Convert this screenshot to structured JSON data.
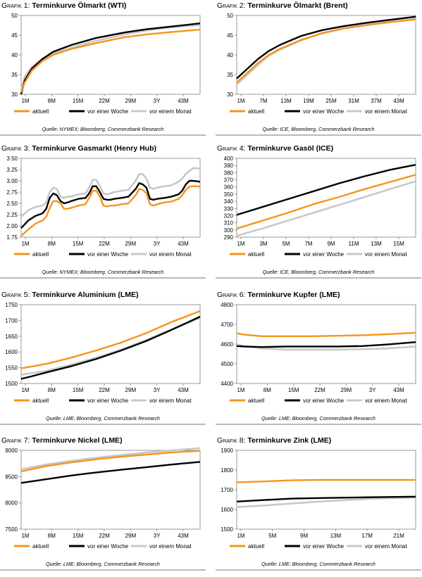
{
  "colors": {
    "aktuell": "#f7941d",
    "woche": "#000000",
    "monat": "#c8c8c8"
  },
  "legend_labels": [
    "aktuell",
    "vor einer Woche",
    "vor einem Monat"
  ],
  "chart_data": [
    {
      "type": "line",
      "prefix": "Grafik 1:",
      "title": "Terminkurve Ölmarkt (WTI)",
      "source": "Quelle: NYMEX; Bloomberg, Commerzbank Research",
      "ylim": [
        30,
        50
      ],
      "yticks": [
        "30",
        "35",
        "40",
        "45",
        "50"
      ],
      "xticks": [
        "1M",
        "8M",
        "15M",
        "22M",
        "29M",
        "3Y",
        "43M"
      ],
      "xdomain": [
        1,
        51
      ],
      "series": [
        {
          "name": "aktuell",
          "x": [
            1,
            2,
            4,
            7,
            10,
            15,
            22,
            30,
            36,
            43,
            51
          ],
          "values": [
            30.5,
            33,
            36,
            38.5,
            40,
            41.5,
            43,
            44.5,
            45.2,
            45.8,
            46.4
          ]
        },
        {
          "name": "vor einer Woche",
          "x": [
            1,
            2,
            4,
            7,
            10,
            15,
            22,
            30,
            36,
            43,
            51
          ],
          "values": [
            30,
            33.5,
            36.5,
            39,
            40.8,
            42.5,
            44.3,
            45.7,
            46.5,
            47.2,
            48
          ]
        },
        {
          "name": "vor einem Monat",
          "x": [
            1,
            2,
            4,
            7,
            10,
            15,
            22,
            30,
            36,
            43,
            51
          ],
          "values": [
            31,
            34.5,
            37,
            39,
            40.4,
            41.8,
            43.6,
            45.2,
            46.2,
            47,
            47.6
          ]
        }
      ]
    },
    {
      "type": "line",
      "prefix": "Grafik 2:",
      "title": "Terminkurve Ölmarkt (Brent)",
      "source": "Quelle: ICE, Bloomberg, Commerzbank Research",
      "ylim": [
        30,
        50
      ],
      "yticks": [
        "30",
        "35",
        "40",
        "45",
        "50"
      ],
      "xticks": [
        "1M",
        "7M",
        "13M",
        "19M",
        "25M",
        "31M",
        "37M",
        "43M"
      ],
      "xdomain": [
        1,
        51
      ],
      "series": [
        {
          "name": "aktuell",
          "x": [
            1,
            4,
            7,
            10,
            13,
            19,
            25,
            31,
            37,
            43,
            51
          ],
          "values": [
            33,
            35.5,
            38,
            40,
            41.5,
            43.8,
            45.5,
            46.7,
            47.5,
            48.2,
            49
          ]
        },
        {
          "name": "vor einer Woche",
          "x": [
            1,
            4,
            7,
            10,
            13,
            19,
            25,
            31,
            37,
            43,
            51
          ],
          "values": [
            34,
            36.5,
            39,
            41,
            42.5,
            44.8,
            46.3,
            47.3,
            48.1,
            48.8,
            49.7
          ]
        },
        {
          "name": "vor einem Monat",
          "x": [
            1,
            4,
            7,
            10,
            13,
            19,
            25,
            31,
            37,
            43,
            51
          ],
          "values": [
            32.5,
            35,
            37.5,
            39.8,
            41.3,
            43.7,
            45.6,
            46.8,
            47.7,
            48.4,
            49.2
          ]
        }
      ]
    },
    {
      "type": "line",
      "prefix": "Grafik 3:",
      "title": "Terminkurve Gasmarkt (Henry Hub)",
      "source": "Quelle: NYMEX; Bloomberg, Commerzbank Research",
      "ylim": [
        1.75,
        3.5
      ],
      "yticks": [
        "1.75",
        "2.00",
        "2.25",
        "2.50",
        "2.75",
        "3.00",
        "3.25",
        "3.50"
      ],
      "xticks": [
        "1M",
        "8M",
        "15M",
        "22M",
        "29M",
        "3Y",
        "43M"
      ],
      "xdomain": [
        1,
        51
      ],
      "series": [
        {
          "name": "aktuell",
          "x": [
            1,
            3,
            5,
            7,
            8,
            9,
            10,
            11,
            12,
            13,
            14,
            15,
            17,
            19,
            20,
            21,
            22,
            23,
            24,
            25,
            26,
            27,
            29,
            31,
            33,
            34,
            35,
            36,
            37,
            38,
            39,
            41,
            43,
            45,
            46,
            47,
            48,
            49,
            50,
            51
          ],
          "values": [
            1.78,
            1.92,
            2.05,
            2.12,
            2.2,
            2.4,
            2.55,
            2.55,
            2.5,
            2.38,
            2.38,
            2.4,
            2.45,
            2.48,
            2.62,
            2.78,
            2.78,
            2.65,
            2.45,
            2.43,
            2.45,
            2.45,
            2.48,
            2.5,
            2.68,
            2.82,
            2.8,
            2.72,
            2.48,
            2.45,
            2.48,
            2.52,
            2.54,
            2.6,
            2.68,
            2.8,
            2.87,
            2.88,
            2.88,
            2.87
          ]
        },
        {
          "name": "vor einer Woche",
          "x": [
            1,
            3,
            5,
            7,
            8,
            9,
            10,
            11,
            12,
            13,
            14,
            15,
            17,
            19,
            20,
            21,
            22,
            23,
            24,
            25,
            26,
            27,
            29,
            31,
            33,
            34,
            35,
            36,
            37,
            38,
            39,
            41,
            43,
            45,
            46,
            47,
            48,
            49,
            50,
            51
          ],
          "values": [
            1.95,
            2.12,
            2.22,
            2.28,
            2.38,
            2.62,
            2.72,
            2.68,
            2.55,
            2.5,
            2.52,
            2.55,
            2.6,
            2.62,
            2.72,
            2.88,
            2.88,
            2.75,
            2.6,
            2.58,
            2.58,
            2.6,
            2.62,
            2.65,
            2.82,
            2.95,
            2.92,
            2.85,
            2.6,
            2.58,
            2.6,
            2.62,
            2.65,
            2.7,
            2.78,
            2.92,
            3.0,
            3.0,
            2.99,
            2.98
          ]
        },
        {
          "name": "vor einem Monat",
          "x": [
            1,
            3,
            5,
            7,
            8,
            9,
            10,
            11,
            12,
            13,
            14,
            15,
            17,
            19,
            20,
            21,
            22,
            23,
            24,
            25,
            26,
            27,
            29,
            31,
            33,
            34,
            35,
            36,
            37,
            38,
            39,
            41,
            43,
            45,
            46,
            47,
            48,
            49,
            50,
            51
          ],
          "values": [
            2.2,
            2.35,
            2.42,
            2.45,
            2.52,
            2.75,
            2.85,
            2.82,
            2.65,
            2.62,
            2.65,
            2.65,
            2.7,
            2.72,
            2.85,
            3.02,
            3.02,
            2.88,
            2.72,
            2.7,
            2.72,
            2.75,
            2.78,
            2.8,
            3.0,
            3.15,
            3.15,
            3.05,
            2.85,
            2.82,
            2.85,
            2.88,
            2.9,
            2.98,
            3.05,
            3.15,
            3.22,
            3.28,
            3.28,
            3.27
          ]
        }
      ]
    },
    {
      "type": "line",
      "prefix": "Grafik 4:",
      "title": "Terminkurve Gasöl (ICE)",
      "source": "Quelle: ICE, Bloomberg, Commerzbank Research",
      "ylim": [
        290,
        400
      ],
      "yticks": [
        "290",
        "300",
        "310",
        "320",
        "330",
        "340",
        "350",
        "360",
        "370",
        "380",
        "390",
        "400"
      ],
      "xticks": [
        "1M",
        "3M",
        "5M",
        "7M",
        "9M",
        "11M",
        "13M",
        "15M"
      ],
      "xdomain": [
        1,
        15
      ],
      "series": [
        {
          "name": "aktuell",
          "x": [
            1,
            3,
            5,
            7,
            9,
            11,
            13,
            15
          ],
          "values": [
            302,
            313,
            324,
            336,
            346,
            357,
            367,
            377
          ]
        },
        {
          "name": "vor einer Woche",
          "x": [
            1,
            3,
            5,
            7,
            9,
            11,
            13,
            15
          ],
          "values": [
            321,
            332,
            343,
            354,
            365,
            375,
            384,
            391
          ]
        },
        {
          "name": "vor einem Monat",
          "x": [
            1,
            3,
            5,
            7,
            9,
            11,
            13,
            15
          ],
          "values": [
            292,
            302,
            313,
            324,
            335,
            346,
            357,
            368
          ]
        }
      ]
    },
    {
      "type": "line",
      "prefix": "Grafik 5:",
      "title": " Terminkurve Aluminium (LME)",
      "source": "Quelle: LME; Bloomberg, Commerzbank Research",
      "ylim": [
        1500,
        1750
      ],
      "yticks": [
        "1500",
        "1550",
        "1600",
        "1650",
        "1700",
        "1750"
      ],
      "xticks": [
        "1M",
        "8M",
        "15M",
        "22M",
        "29M",
        "3Y",
        "43M"
      ],
      "xdomain": [
        1,
        51
      ],
      "series": [
        {
          "name": "aktuell",
          "x": [
            1,
            3,
            8,
            15,
            22,
            29,
            36,
            43,
            51
          ],
          "values": [
            1548,
            1552,
            1562,
            1582,
            1605,
            1630,
            1660,
            1695,
            1730
          ]
        },
        {
          "name": "vor einer Woche",
          "x": [
            1,
            3,
            8,
            15,
            22,
            29,
            36,
            43,
            51
          ],
          "values": [
            1515,
            1520,
            1535,
            1555,
            1578,
            1605,
            1635,
            1670,
            1712
          ]
        },
        {
          "name": "vor einem Monat",
          "x": [
            1,
            3,
            8,
            15,
            22,
            29,
            36,
            43,
            51
          ],
          "values": [
            1528,
            1531,
            1540,
            1560,
            1582,
            1608,
            1638,
            1672,
            1708
          ]
        }
      ]
    },
    {
      "type": "line",
      "prefix": "Grafik 6:",
      "title": "Terminkurve Kupfer (LME)",
      "source": "Quelle: LME; Bloomberg, Commerzbank Research",
      "ylim": [
        4400,
        4800
      ],
      "yticks": [
        "4400",
        "4500",
        "4600",
        "4700",
        "4800"
      ],
      "xticks": [
        "1M",
        "8M",
        "15M",
        "22M",
        "29M",
        "3Y",
        "43M"
      ],
      "xdomain": [
        1,
        51
      ],
      "series": [
        {
          "name": "aktuell",
          "x": [
            1,
            3,
            8,
            15,
            22,
            29,
            36,
            43,
            51
          ],
          "values": [
            4655,
            4648,
            4640,
            4640,
            4640,
            4642,
            4645,
            4650,
            4658
          ]
        },
        {
          "name": "vor einer Woche",
          "x": [
            1,
            3,
            8,
            15,
            22,
            29,
            36,
            43,
            51
          ],
          "values": [
            4590,
            4588,
            4585,
            4588,
            4588,
            4588,
            4590,
            4598,
            4610
          ]
        },
        {
          "name": "vor einem Monat",
          "x": [
            1,
            3,
            8,
            15,
            22,
            29,
            36,
            43,
            51
          ],
          "values": [
            4598,
            4590,
            4578,
            4572,
            4572,
            4572,
            4574,
            4578,
            4588
          ]
        }
      ]
    },
    {
      "type": "line",
      "prefix": "Grafik 7:",
      "title": "Terminkurve Nickel (LME)",
      "source": "Quelle: LME; Bloomberg, Commerzbank Research",
      "ylim": [
        7500,
        9000
      ],
      "yticks": [
        "7500",
        "8000",
        "8500",
        "9000"
      ],
      "xticks": [
        "1M",
        "8M",
        "15M",
        "22M",
        "29M",
        "3Y",
        "43M"
      ],
      "xdomain": [
        1,
        51
      ],
      "series": [
        {
          "name": "aktuell",
          "x": [
            1,
            8,
            15,
            22,
            29,
            36,
            43,
            51
          ],
          "values": [
            8600,
            8700,
            8770,
            8830,
            8880,
            8920,
            8960,
            8990
          ]
        },
        {
          "name": "vor einer Woche",
          "x": [
            1,
            8,
            15,
            22,
            29,
            36,
            43,
            51
          ],
          "values": [
            8380,
            8450,
            8520,
            8580,
            8630,
            8680,
            8730,
            8780
          ]
        },
        {
          "name": "vor einem Monat",
          "x": [
            1,
            8,
            15,
            22,
            29,
            36,
            43,
            51
          ],
          "values": [
            8640,
            8730,
            8800,
            8860,
            8910,
            8960,
            9000,
            9040
          ]
        }
      ]
    },
    {
      "type": "line",
      "prefix": "Grafik 8:",
      "title": "Terminkurve Zink (LME)",
      "source": "Quelle: LME; Bloomberg, Commerzbank Research",
      "ylim": [
        1500,
        1900
      ],
      "yticks": [
        "1500",
        "1600",
        "1700",
        "1800",
        "1900"
      ],
      "xticks": [
        "1M",
        "5M",
        "9M",
        "13M",
        "17M",
        "21M"
      ],
      "xdomain": [
        1,
        27
      ],
      "series": [
        {
          "name": "aktuell",
          "x": [
            1,
            5,
            9,
            13,
            17,
            21,
            27
          ],
          "values": [
            1738,
            1742,
            1748,
            1750,
            1750,
            1750,
            1750
          ]
        },
        {
          "name": "vor einer Woche",
          "x": [
            1,
            5,
            9,
            13,
            17,
            21,
            27
          ],
          "values": [
            1640,
            1648,
            1655,
            1658,
            1660,
            1662,
            1665
          ]
        },
        {
          "name": "vor einem Monat",
          "x": [
            1,
            5,
            9,
            13,
            17,
            21,
            27
          ],
          "values": [
            1612,
            1620,
            1630,
            1640,
            1648,
            1655,
            1660
          ]
        }
      ]
    }
  ]
}
